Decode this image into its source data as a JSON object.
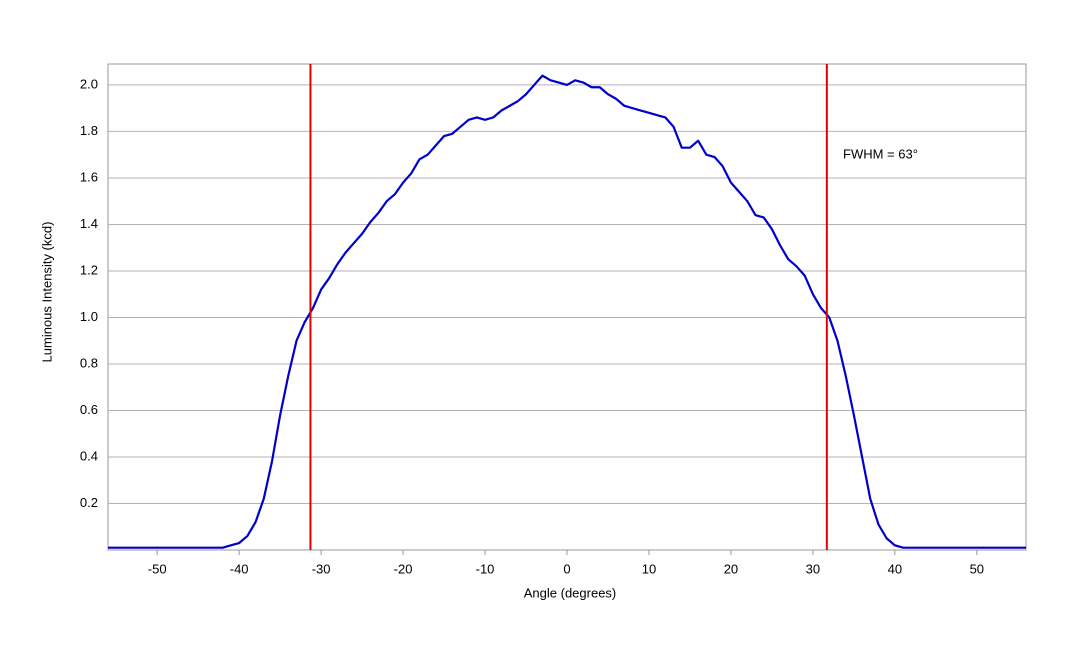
{
  "chart_data": {
    "type": "line",
    "xlabel": "Angle (degrees)",
    "ylabel": "Luminous Intensity (kcd)",
    "annotation": "FWHM = 63°",
    "xlim": [
      -56,
      56
    ],
    "ylim": [
      0,
      2.09
    ],
    "xticks": [
      -50,
      -40,
      -30,
      -20,
      -10,
      0,
      10,
      20,
      30,
      40,
      50
    ],
    "yticks": [
      0.2,
      0.4,
      0.6,
      0.8,
      {
        "value": 1,
        "label": "1.0"
      },
      1.2,
      1.4,
      1.6,
      1.8,
      {
        "value": 2,
        "label": "2.0"
      }
    ],
    "grid": true,
    "vlines": [
      -31.3,
      31.7
    ],
    "vline_color": "#e00000",
    "x": [
      -56,
      -55,
      -54,
      -53,
      -52,
      -51,
      -50,
      -49,
      -48,
      -47,
      -46,
      -45,
      -44,
      -43,
      -42,
      -41,
      -40,
      -39,
      -38,
      -37,
      -36,
      -35,
      -34,
      -33,
      -32,
      -31,
      -30,
      -29,
      -28,
      -27,
      -26,
      -25,
      -24,
      -23,
      -22,
      -21,
      -20,
      -19,
      -18,
      -17,
      -16,
      -15,
      -14,
      -13,
      -12,
      -11,
      -10,
      -9,
      -8,
      -7,
      -6,
      -5,
      -4,
      -3,
      -2,
      -1,
      0,
      1,
      2,
      3,
      4,
      5,
      6,
      7,
      8,
      9,
      10,
      11,
      12,
      13,
      14,
      15,
      16,
      17,
      18,
      19,
      20,
      21,
      22,
      23,
      24,
      25,
      26,
      27,
      28,
      29,
      30,
      31,
      32,
      33,
      34,
      35,
      36,
      37,
      38,
      39,
      40,
      41,
      42,
      43,
      44,
      45,
      46,
      47,
      48,
      49,
      50,
      51,
      52,
      53,
      54,
      55,
      56
    ],
    "series": [
      {
        "color": "#0000cc",
        "values": [
          0.01,
          0.01,
          0.01,
          0.01,
          0.01,
          0.01,
          0.01,
          0.01,
          0.01,
          0.01,
          0.01,
          0.01,
          0.01,
          0.01,
          0.01,
          0.02,
          0.03,
          0.06,
          0.12,
          0.22,
          0.38,
          0.58,
          0.75,
          0.9,
          0.98,
          1.04,
          1.12,
          1.17,
          1.23,
          1.28,
          1.32,
          1.36,
          1.41,
          1.45,
          1.5,
          1.53,
          1.58,
          1.62,
          1.68,
          1.7,
          1.74,
          1.78,
          1.79,
          1.82,
          1.85,
          1.86,
          1.85,
          1.86,
          1.89,
          1.91,
          1.93,
          1.96,
          2.0,
          2.04,
          2.02,
          2.01,
          2.0,
          2.02,
          2.01,
          1.99,
          1.99,
          1.96,
          1.94,
          1.91,
          1.9,
          1.89,
          1.88,
          1.87,
          1.86,
          1.82,
          1.73,
          1.73,
          1.76,
          1.7,
          1.69,
          1.65,
          1.58,
          1.54,
          1.5,
          1.44,
          1.43,
          1.38,
          1.31,
          1.25,
          1.22,
          1.18,
          1.1,
          1.04,
          1.0,
          0.9,
          0.75,
          0.58,
          0.4,
          0.22,
          0.11,
          0.05,
          0.02,
          0.01,
          0.01,
          0.01,
          0.01,
          0.01,
          0.01,
          0.01,
          0.01,
          0.01,
          0.01,
          0.01,
          0.01,
          0.01,
          0.01,
          0.01,
          0.01
        ]
      }
    ]
  }
}
